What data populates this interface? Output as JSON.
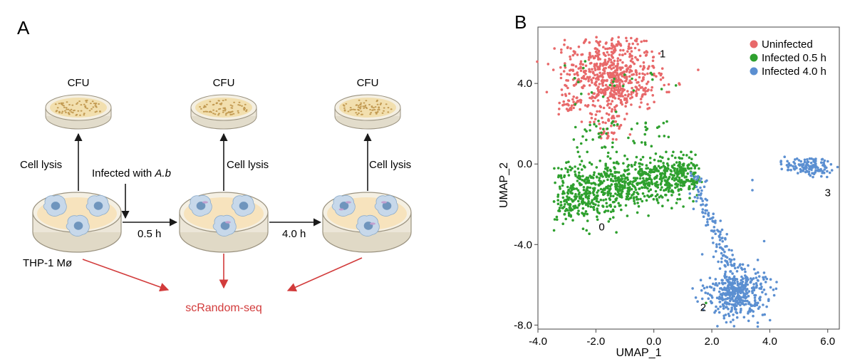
{
  "panel_a": {
    "letter": "A",
    "cfu_label": "CFU",
    "cell_lysis_label": "Cell lysis",
    "infected_prefix": "Infected with ",
    "infected_organism": "A.b",
    "time_1": "0.5 h",
    "time_2": "4.0 h",
    "cell_line": "THP-1 Mø",
    "method": "scRandom-seq"
  },
  "panel_b": {
    "letter": "B"
  },
  "colors": {
    "uninfected": "#e8696a",
    "infected_05": "#2ea02e",
    "infected_40": "#5b8fd1",
    "arrow_black": "#1a1a1a",
    "arrow_red": "#d23b3b",
    "dish_outer": "#ece6d8",
    "dish_fill": "#f7e3bd",
    "dish_rim": "#9a927f",
    "cell_body": "#c7d8ea",
    "cell_nucleus": "#6f95bd"
  },
  "chart_data": {
    "type": "scatter",
    "title": "",
    "xlabel": "UMAP_1",
    "ylabel": "UMAP_2",
    "xlim": [
      -4.0,
      6.4
    ],
    "ylim": [
      -8.2,
      6.8
    ],
    "xticks": [
      "-4.0",
      "-2.0",
      "0.0",
      "2.0",
      "4.0",
      "6.0"
    ],
    "xtick_values": [
      -4,
      -2,
      0,
      2,
      4,
      6
    ],
    "yticks": [
      "4.0",
      "0.0",
      "-4.0",
      "-8.0"
    ],
    "ytick_values": [
      4,
      0,
      -4,
      -8
    ],
    "legend_position": "top-right",
    "legend": [
      "Uninfected",
      "Infected 0.5 h",
      "Infected 4.0 h"
    ],
    "clusters": [
      {
        "id": "0",
        "center": [
          -1.2,
          -0.9
        ],
        "spread": [
          1.4,
          1.0
        ],
        "n": 900,
        "series": "Infected 0.5 h"
      },
      {
        "id": "1",
        "center": [
          -1.5,
          4.3
        ],
        "spread": [
          1.1,
          1.2
        ],
        "n": 650,
        "series": "Uninfected"
      },
      {
        "id": "2",
        "center": [
          2.9,
          -6.3
        ],
        "spread": [
          0.45,
          0.8
        ],
        "n": 420,
        "series": "Infected 4.0 h"
      },
      {
        "id": "3",
        "center": [
          5.2,
          -0.1
        ],
        "spread": [
          0.5,
          0.25
        ],
        "n": 120,
        "series": "Infected 4.0 h"
      }
    ],
    "series": [
      {
        "name": "Uninfected",
        "color": "#e8696a"
      },
      {
        "name": "Infected 0.5 h",
        "color": "#2ea02e"
      },
      {
        "name": "Infected 4.0 h",
        "color": "#5b8fd1"
      }
    ]
  }
}
